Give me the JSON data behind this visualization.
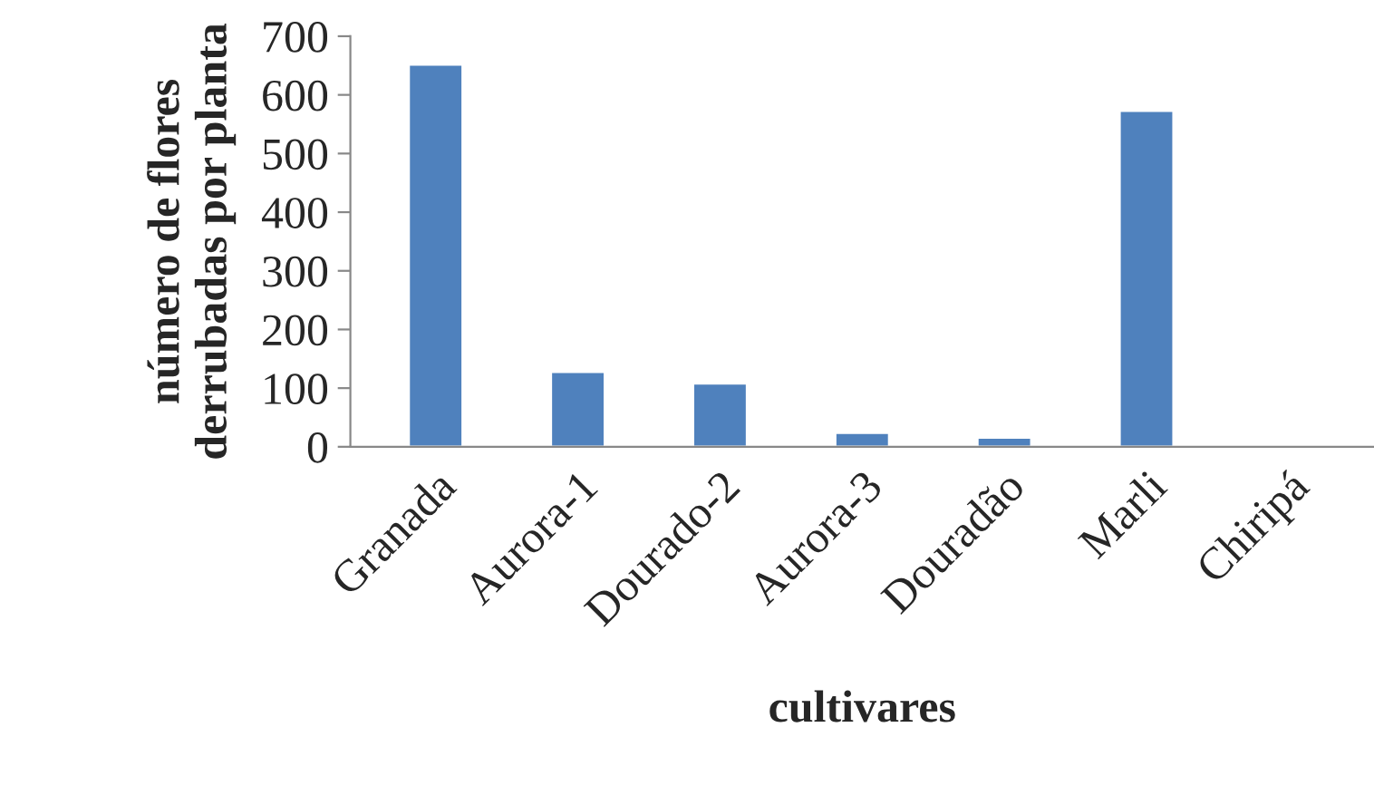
{
  "chart_data": {
    "type": "bar",
    "xlabel": "cultivares",
    "ylabel": "número de flores\nderrubadas por planta",
    "categories": [
      "Granada",
      "Aurora-1",
      "Dourado-2",
      "Aurora-3",
      "Douradão",
      "Marli",
      "Chiripá"
    ],
    "values": [
      652,
      128,
      108,
      24,
      16,
      573,
      null
    ],
    "color": "#4f81bd",
    "ylim": [
      0,
      700
    ],
    "yticks": [
      0,
      100,
      200,
      300,
      400,
      500,
      600,
      700
    ],
    "grid": false
  }
}
